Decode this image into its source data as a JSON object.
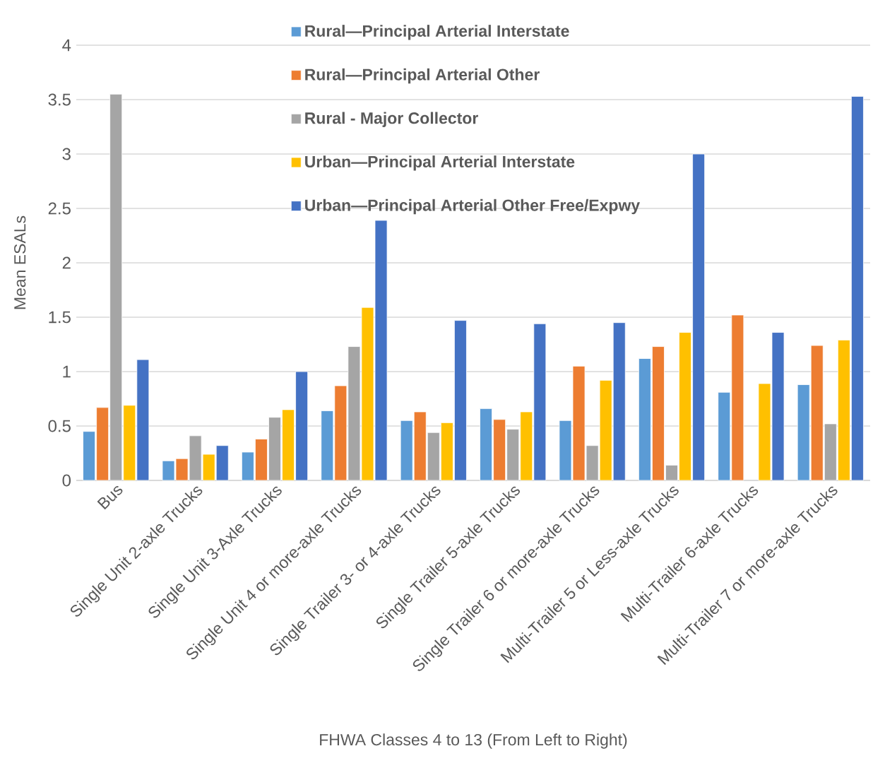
{
  "chart_data": {
    "type": "bar",
    "xlabel": "FHWA Classes 4 to 13 (From Left to Right)",
    "ylabel": "Mean ESALs",
    "categories": [
      "Bus",
      "Single Unit 2-axle  Trucks",
      "Single Unit 3-Axle Trucks",
      "Single Unit 4 or more-axle Trucks",
      "Single Trailer 3- or 4-axle Trucks",
      "Single Trailer 5-axle Trucks",
      "Single Trailer 6 or more-axle Trucks",
      "Multi-Trailer 5 or Less-axle Trucks",
      "Multi-Trailer 6-axle Trucks",
      "Multi-Trailer 7 or more-axle Trucks"
    ],
    "series": [
      {
        "name": "Rural—Principal Arterial Interstate",
        "color": "#5b9bd5",
        "values": [
          0.45,
          0.18,
          0.26,
          0.64,
          0.55,
          0.66,
          0.55,
          1.12,
          0.81,
          0.88
        ]
      },
      {
        "name": "Rural—Principal Arterial Other",
        "color": "#ed7d31",
        "values": [
          0.67,
          0.2,
          0.38,
          0.87,
          0.63,
          0.56,
          1.05,
          1.23,
          1.52,
          1.24
        ]
      },
      {
        "name": "Rural - Major Collector",
        "color": "#a5a5a5",
        "values": [
          3.55,
          0.41,
          0.58,
          1.23,
          0.44,
          0.47,
          0.32,
          0.14,
          null,
          0.52
        ]
      },
      {
        "name": "Urban—Principal Arterial Interstate",
        "color": "#ffc000",
        "values": [
          0.69,
          0.24,
          0.65,
          1.59,
          0.53,
          0.63,
          0.92,
          1.36,
          0.89,
          1.29
        ]
      },
      {
        "name": "Urban—Principal Arterial Other Free/Expwy",
        "color": "#4472c4",
        "values": [
          1.11,
          0.32,
          1.0,
          2.39,
          1.47,
          1.44,
          1.45,
          3.0,
          1.36,
          3.53
        ]
      }
    ],
    "ylim": [
      0,
      4
    ],
    "yticks": [
      0,
      0.5,
      1,
      1.5,
      2,
      2.5,
      3,
      3.5,
      4
    ],
    "grid": "y",
    "legend": "top"
  }
}
